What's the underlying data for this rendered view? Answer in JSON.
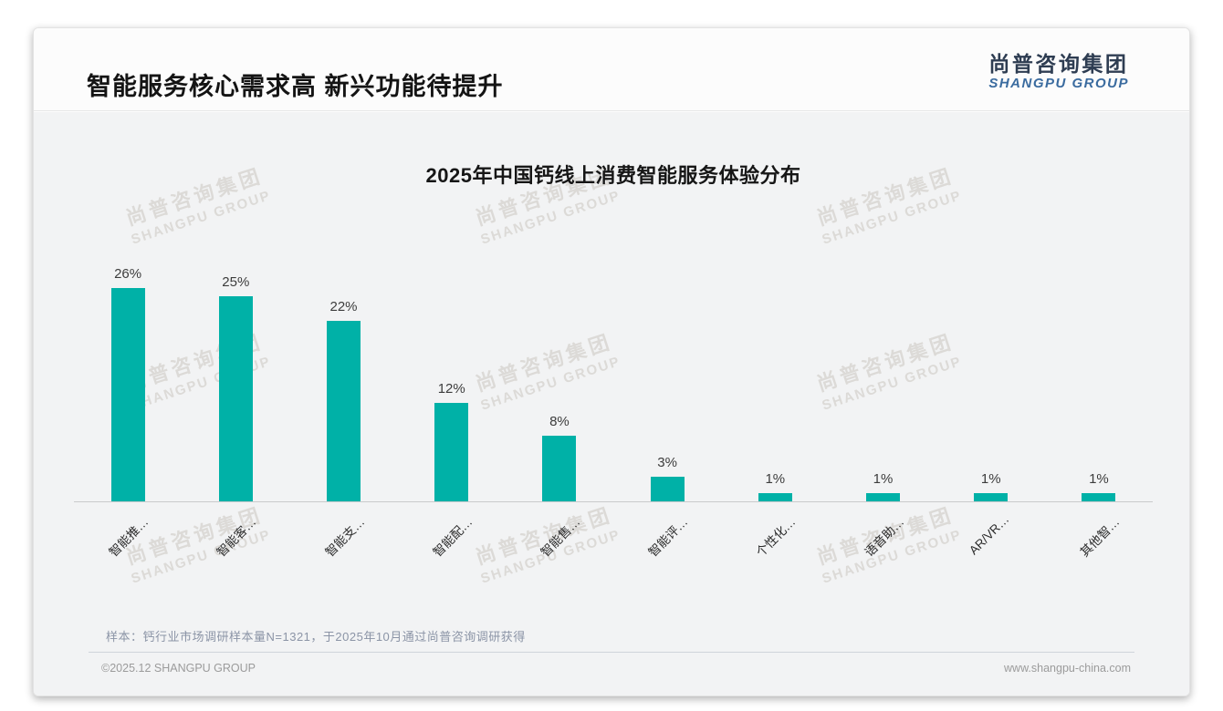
{
  "header": {
    "title": "智能服务核心需求高 新兴功能待提升",
    "logo_cn": "尚普咨询集团",
    "logo_en": "SHANGPU GROUP"
  },
  "chart_data": {
    "type": "bar",
    "title": "2025年中国钙线上消费智能服务体验分布",
    "categories": [
      "智能推…",
      "智能客…",
      "智能支…",
      "智能配…",
      "智能售…",
      "智能评…",
      "个性化…",
      "语音助…",
      "AR/VR…",
      "其他智…"
    ],
    "values": [
      26,
      25,
      22,
      12,
      8,
      3,
      1,
      1,
      1,
      1
    ],
    "value_labels": [
      "26%",
      "25%",
      "22%",
      "12%",
      "8%",
      "3%",
      "1%",
      "1%",
      "1%",
      "1%"
    ],
    "unit": "%",
    "ylim": [
      0,
      26
    ],
    "bar_color": "#00b1a7",
    "grid": "off",
    "legend": "none"
  },
  "watermark": {
    "line1": "尚普咨询集团",
    "line2": "SHANGPU GROUP"
  },
  "note": "样本：钙行业市场调研样本量N=1321，于2025年10月通过尚普咨询调研获得",
  "footer": {
    "left": "©2025.12 SHANGPU GROUP",
    "right": "www.shangpu-china.com"
  }
}
